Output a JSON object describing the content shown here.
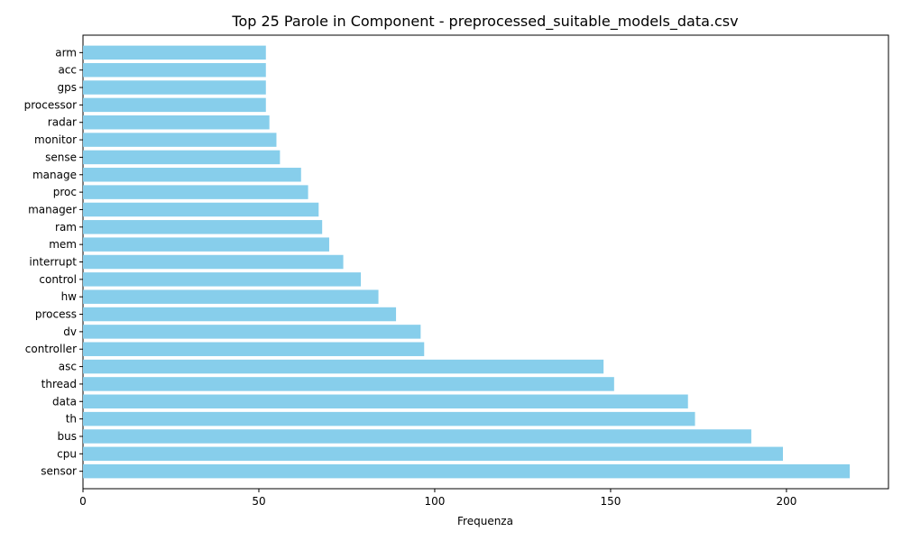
{
  "chart_data": {
    "type": "bar",
    "orientation": "horizontal",
    "title": "Top 25 Parole in Component - preprocessed_suitable_models_data.csv",
    "xlabel": "Frequenza",
    "ylabel": "",
    "xlim": [
      0,
      229
    ],
    "xticks": [
      0,
      50,
      100,
      150,
      200
    ],
    "grid": false,
    "bar_color": "#87ceeb",
    "categories": [
      "sensor",
      "cpu",
      "bus",
      "th",
      "data",
      "thread",
      "asc",
      "controller",
      "dv",
      "process",
      "hw",
      "control",
      "interrupt",
      "mem",
      "ram",
      "manager",
      "proc",
      "manage",
      "sense",
      "monitor",
      "radar",
      "processor",
      "gps",
      "acc",
      "arm"
    ],
    "values": [
      218,
      199,
      190,
      174,
      172,
      151,
      148,
      97,
      96,
      89,
      84,
      79,
      74,
      70,
      68,
      67,
      64,
      62,
      56,
      55,
      53,
      52,
      52,
      52,
      52
    ]
  }
}
